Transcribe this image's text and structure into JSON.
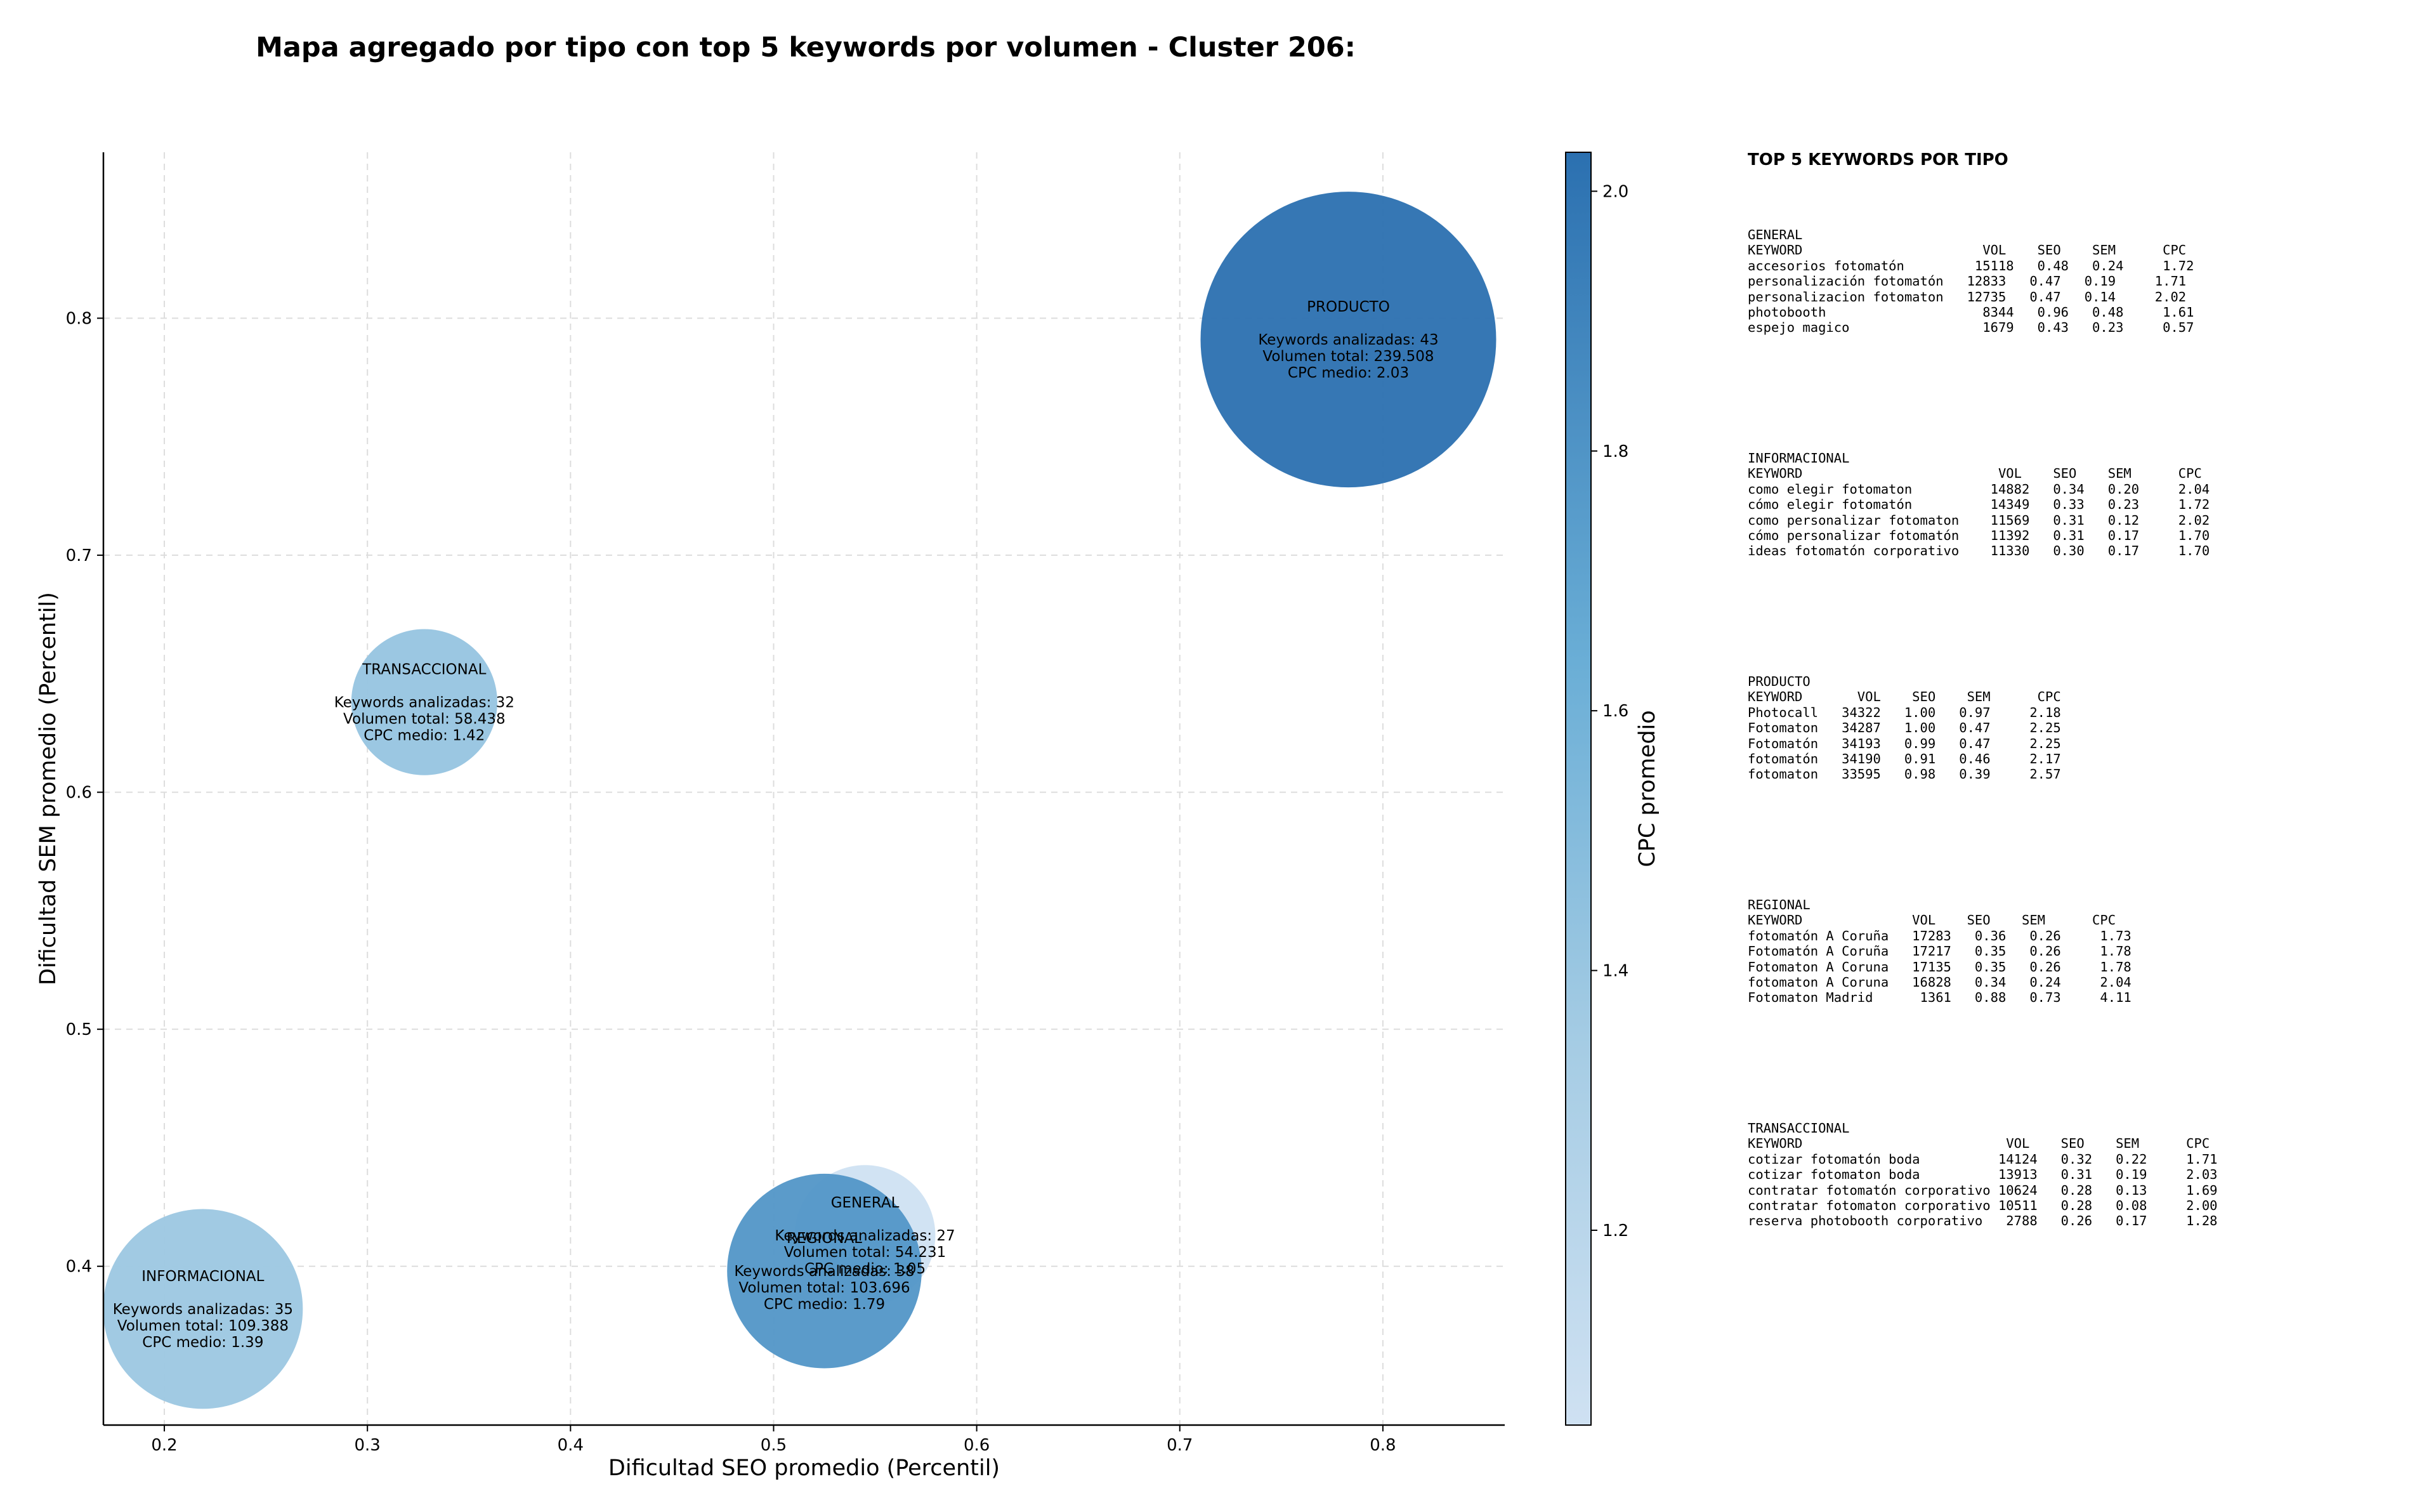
{
  "chart_data": {
    "type": "scatter",
    "title": "Mapa agregado por tipo con top 5 keywords por volumen - Cluster 206:",
    "xlabel": "Dificultad SEO promedio (Percentil)",
    "ylabel": "Dificultad SEM promedio (Percentil)",
    "xlim": [
      0.17,
      0.86
    ],
    "ylim": [
      0.333,
      0.87
    ],
    "xticks": [
      0.2,
      0.3,
      0.4,
      0.5,
      0.6,
      0.7,
      0.8
    ],
    "yticks": [
      0.4,
      0.5,
      0.6,
      0.7,
      0.8
    ],
    "grid": true,
    "size_encoding": "Volumen total",
    "color_encoding": "CPC promedio",
    "colorbar": {
      "label": "CPC promedio",
      "range": [
        1.05,
        2.03
      ],
      "ticks": [
        1.2,
        1.4,
        1.6,
        1.8,
        2.0
      ]
    },
    "points": [
      {
        "name": "PRODUCTO",
        "x": 0.783,
        "y": 0.791,
        "volume": 239508,
        "cpc": 2.03,
        "lines": [
          "PRODUCTO",
          "",
          "Keywords analizadas: 43",
          "Volumen total: 239.508",
          "CPC medio: 2.03"
        ]
      },
      {
        "name": "TRANSACCIONAL",
        "x": 0.328,
        "y": 0.638,
        "volume": 58438,
        "cpc": 1.42,
        "lines": [
          "TRANSACCIONAL",
          "",
          "Keywords analizadas: 32",
          "Volumen total: 58.438",
          "CPC medio: 1.42"
        ]
      },
      {
        "name": "INFORMACIONAL",
        "x": 0.219,
        "y": 0.382,
        "volume": 109388,
        "cpc": 1.39,
        "lines": [
          "INFORMACIONAL",
          "",
          "Keywords analizadas: 35",
          "Volumen total: 109.388",
          "CPC medio: 1.39"
        ]
      },
      {
        "name": "GENERAL",
        "x": 0.545,
        "y": 0.413,
        "volume": 54231,
        "cpc": 1.05,
        "lines": [
          "GENERAL",
          "",
          "Keywords analizadas: 27",
          "Volumen total: 54.231",
          "CPC medio: 1.05"
        ]
      },
      {
        "name": "REGIONAL",
        "x": 0.525,
        "y": 0.398,
        "volume": 103696,
        "cpc": 1.79,
        "lines": [
          "REGIONAL",
          "",
          "Keywords analizadas: 38",
          "Volumen total: 103.696",
          "CPC medio: 1.79"
        ]
      }
    ]
  },
  "top5": {
    "title": "TOP 5 KEYWORDS POR TIPO",
    "blocks": [
      {
        "name": "GENERAL",
        "text": "GENERAL\nKEYWORD                       VOL    SEO    SEM      CPC\naccesorios fotomatón         15118   0.48   0.24     1.72\npersonalización fotomatón   12833   0.47   0.19     1.71\npersonalizacion fotomaton   12735   0.47   0.14     2.02\nphotobooth                    8344   0.96   0.48     1.61\nespejo magico                 1679   0.43   0.23     0.57"
      },
      {
        "name": "INFORMACIONAL",
        "text": "INFORMACIONAL\nKEYWORD                         VOL    SEO    SEM      CPC\ncomo elegir fotomaton          14882   0.34   0.20     2.04\ncómo elegir fotomatón          14349   0.33   0.23     1.72\ncomo personalizar fotomaton    11569   0.31   0.12     2.02\ncómo personalizar fotomatón    11392   0.31   0.17     1.70\nideas fotomatón corporativo    11330   0.30   0.17     1.70"
      },
      {
        "name": "PRODUCTO",
        "text": "PRODUCTO\nKEYWORD       VOL    SEO    SEM      CPC\nPhotocall   34322   1.00   0.97     2.18\nFotomaton   34287   1.00   0.47     2.25\nFotomatón   34193   0.99   0.47     2.25\nfotomatón   34190   0.91   0.46     2.17\nfotomaton   33595   0.98   0.39     2.57"
      },
      {
        "name": "REGIONAL",
        "text": "REGIONAL\nKEYWORD              VOL    SEO    SEM      CPC\nfotomatón A Coruña   17283   0.36   0.26     1.73\nFotomatón A Coruña   17217   0.35   0.26     1.78\nFotomaton A Coruna   17135   0.35   0.26     1.78\nfotomaton A Coruna   16828   0.34   0.24     2.04\nFotomaton Madrid      1361   0.88   0.73     4.11"
      },
      {
        "name": "TRANSACCIONAL",
        "text": "TRANSACCIONAL\nKEYWORD                          VOL    SEO    SEM      CPC\ncotizar fotomatón boda          14124   0.32   0.22     1.71\ncotizar fotomaton boda          13913   0.31   0.19     2.03\ncontratar fotomatón corporativo 10624   0.28   0.13     1.69\ncontratar fotomaton corporativo 10511   0.28   0.08     2.00\nreserva photobooth corporativo   2788   0.26   0.17     1.28"
      }
    ]
  }
}
